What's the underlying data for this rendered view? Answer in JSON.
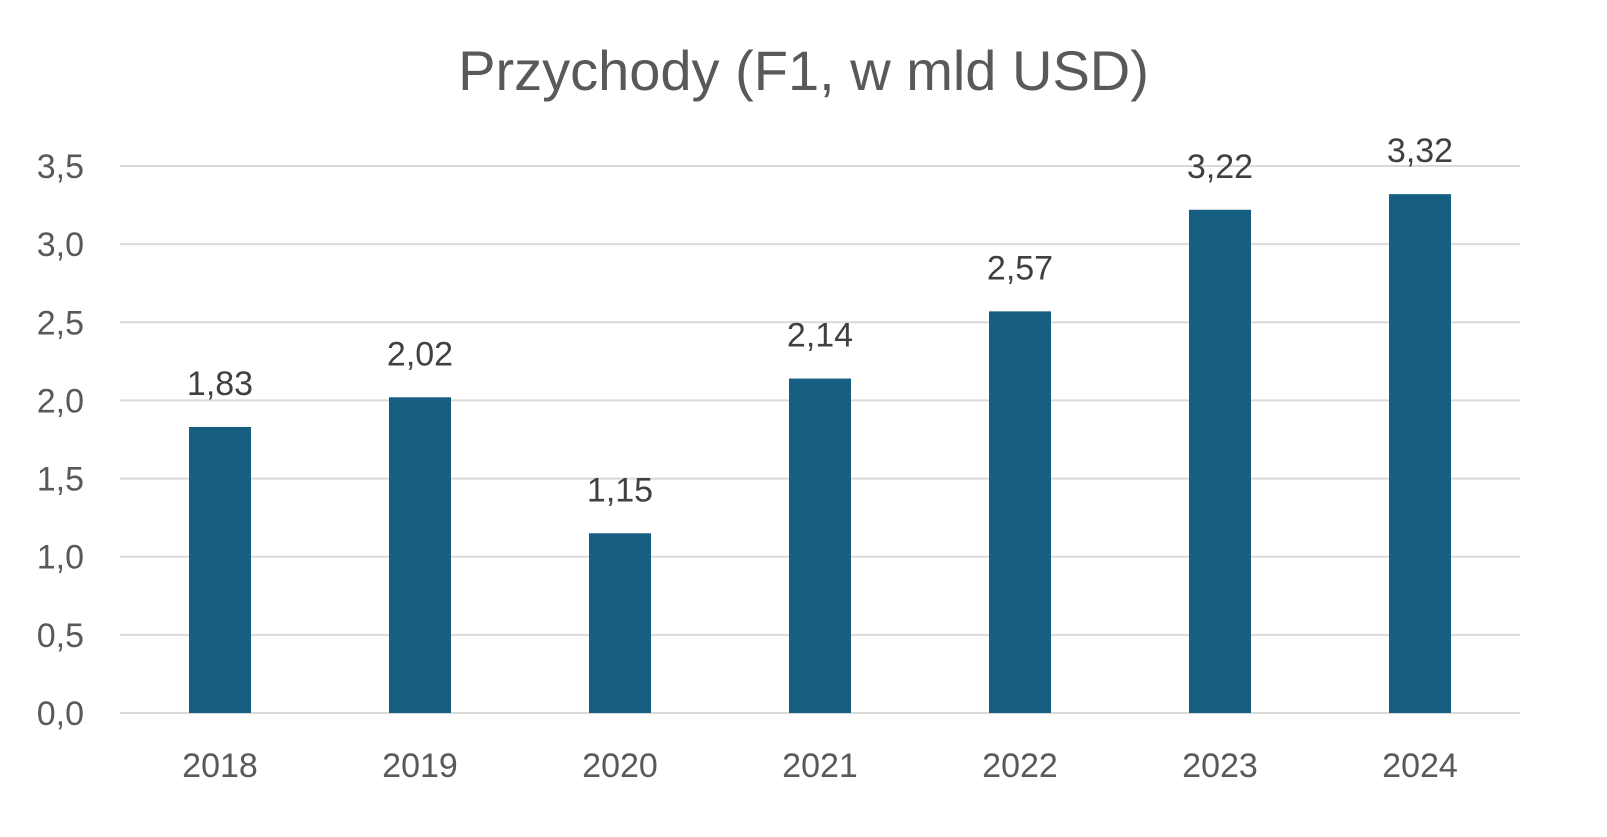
{
  "chart_data": {
    "type": "bar",
    "title": "Przychody (F1, w mld USD)",
    "xlabel": "",
    "ylabel": "",
    "categories": [
      "2018",
      "2019",
      "2020",
      "2021",
      "2022",
      "2023",
      "2024"
    ],
    "values": [
      1.83,
      2.02,
      1.15,
      2.14,
      2.57,
      3.22,
      3.32
    ],
    "data_labels": [
      "1,83",
      "2,02",
      "1,15",
      "2,14",
      "2,57",
      "3,22",
      "3,32"
    ],
    "ylim": [
      0,
      3.5
    ],
    "yticks": [
      0,
      0.5,
      1.0,
      1.5,
      2.0,
      2.5,
      3.0,
      3.5
    ],
    "ytick_labels": [
      "0,0",
      "0,5",
      "1,0",
      "1,5",
      "2,0",
      "2,5",
      "3,0",
      "3,5"
    ],
    "grid": true,
    "legend": "none",
    "bar_color": "#175f82",
    "grid_color": "#d9d9d9"
  }
}
